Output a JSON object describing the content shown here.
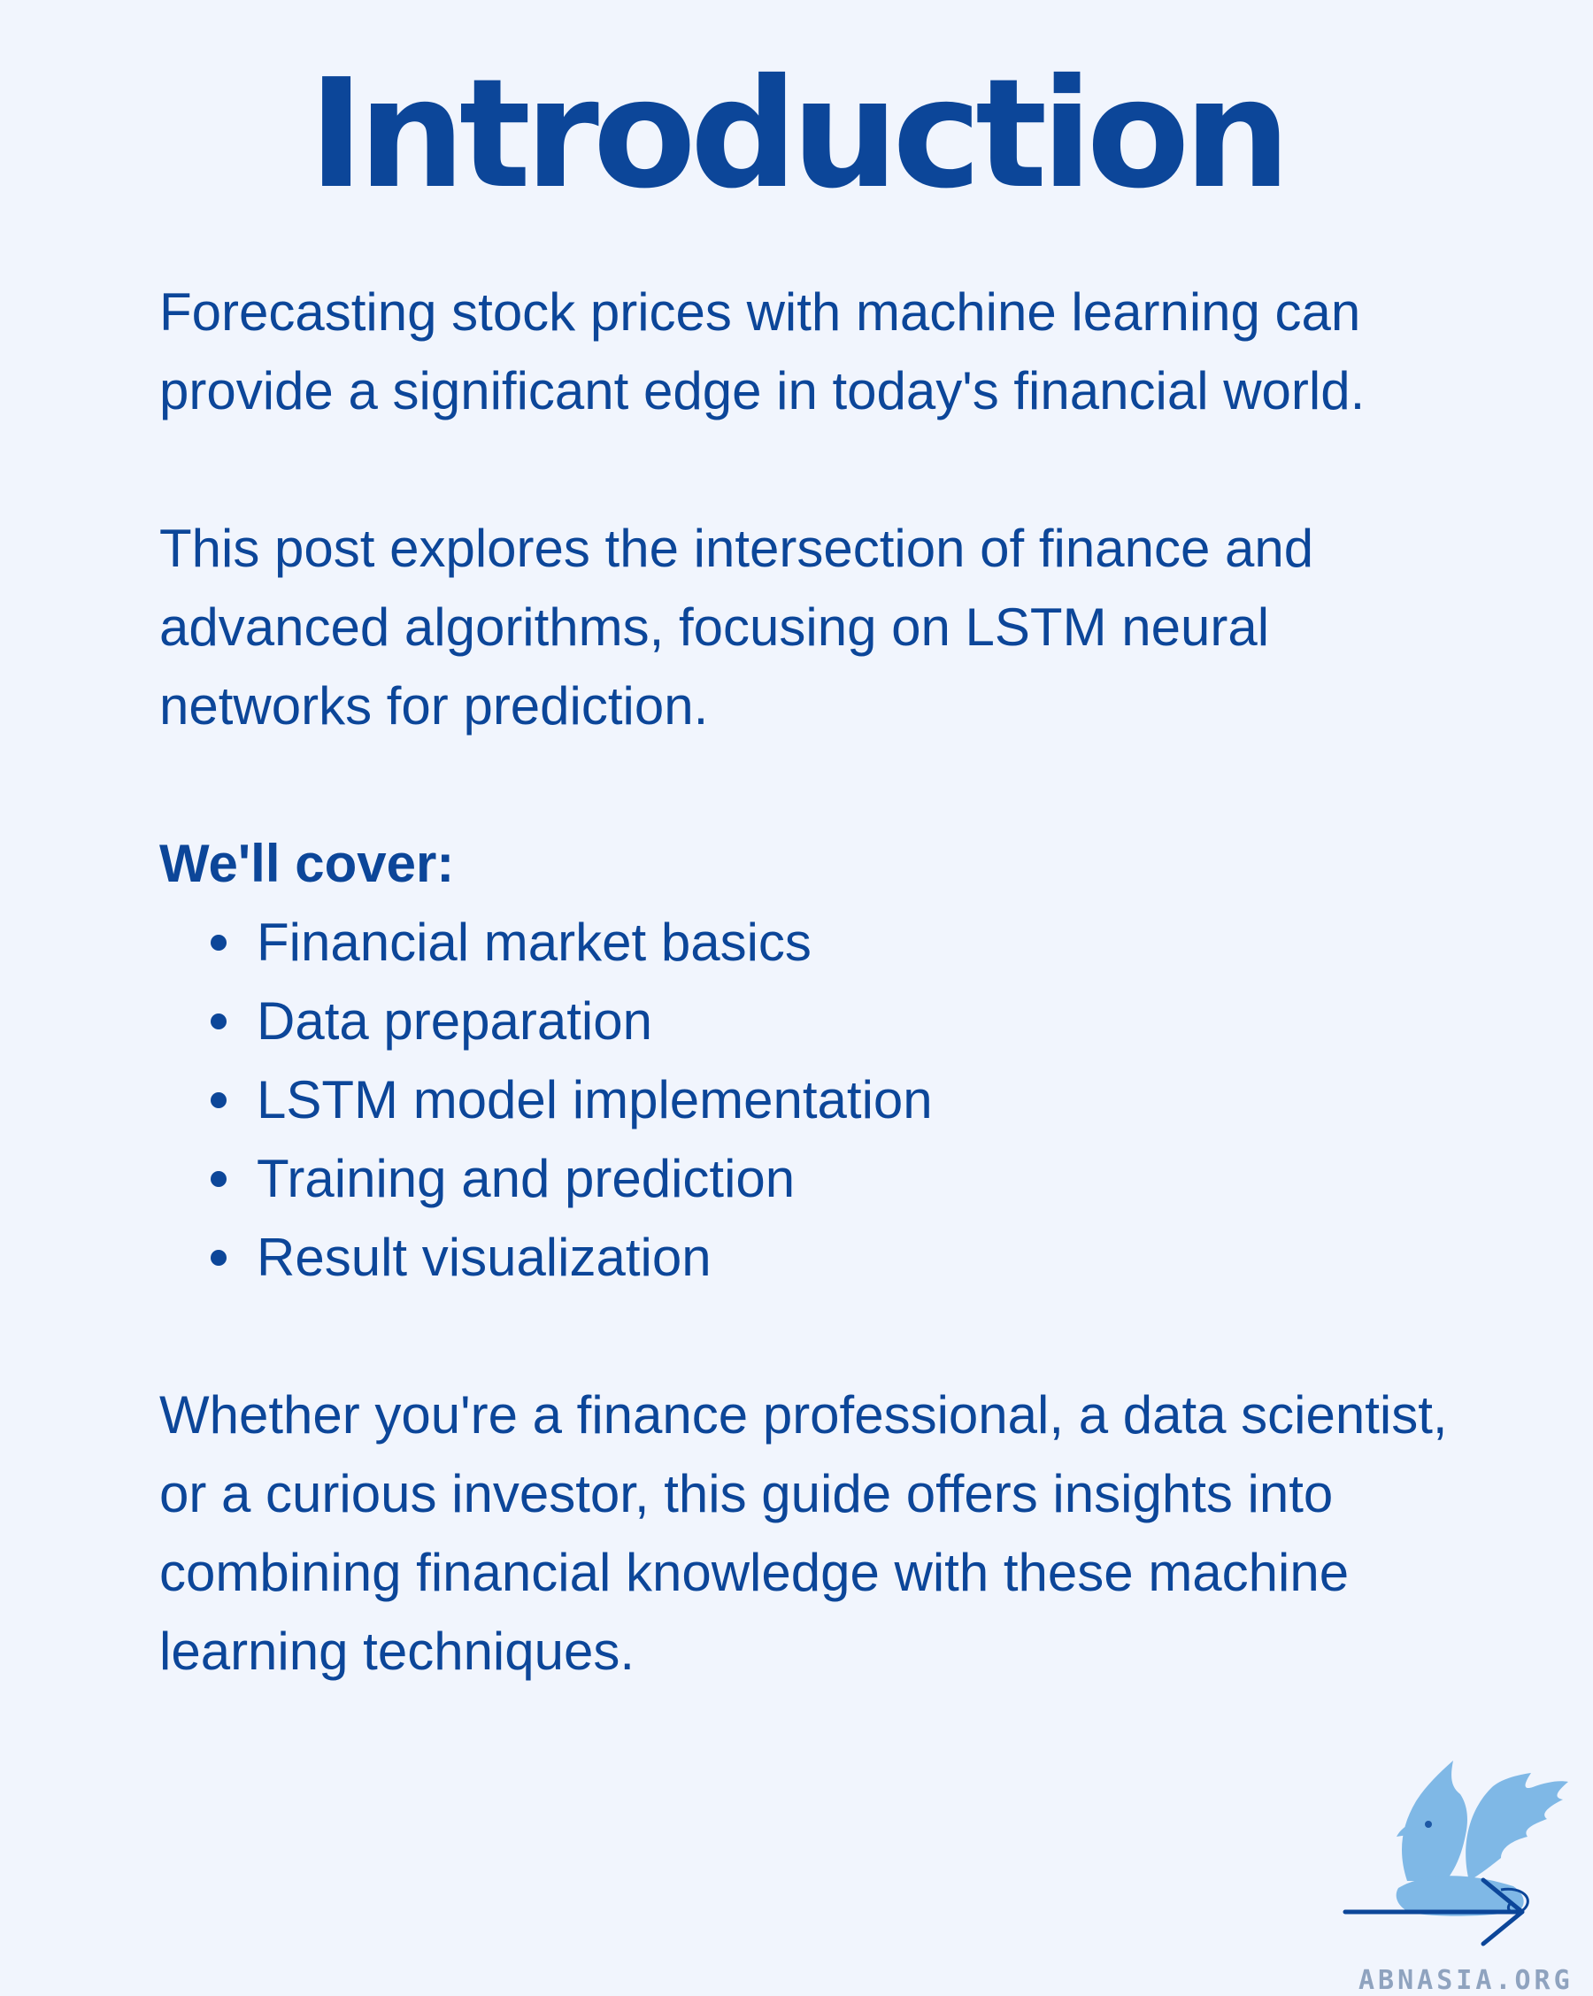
{
  "title": "Introduction",
  "paragraphs": [
    "Forecasting stock prices with machine learning can provide a significant edge in today's financial world.",
    "This post explores the intersection of finance and advanced algorithms, focusing on LSTM neural networks for prediction."
  ],
  "cover": {
    "heading": "We'll cover:",
    "items": [
      "Financial market basics",
      "Data preparation",
      "LSTM model implementation",
      "Training and prediction",
      "Result visualization"
    ]
  },
  "closing": "Whether you're a finance professional, a data scientist, or a curious investor, this guide offers insights into combining financial knowledge with these machine learning techniques.",
  "logo": {
    "text": "ABNASIA.ORG",
    "icon": "griffin-logo"
  },
  "navigation": {
    "icon": "arrow-right-icon"
  },
  "colors": {
    "background": "#f1f5fd",
    "text": "#0c4699",
    "logo_light": "#7fb8e6"
  }
}
